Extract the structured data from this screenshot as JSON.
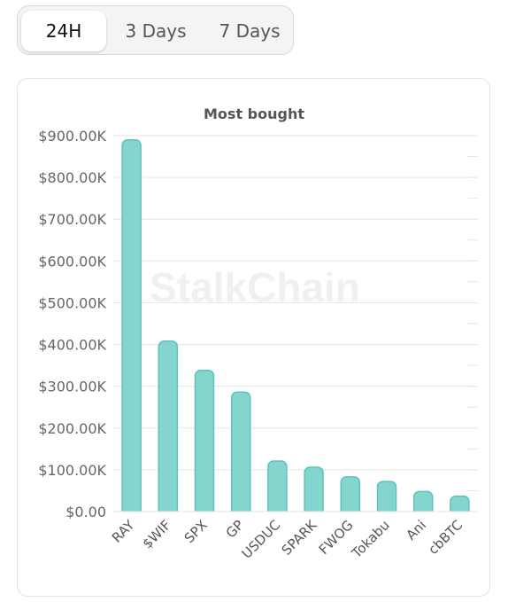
{
  "tabs": [
    {
      "label": "24H",
      "active": true
    },
    {
      "label": "3 Days",
      "active": false
    },
    {
      "label": "7 Days",
      "active": false
    }
  ],
  "watermark": "StalkChain",
  "colors": {
    "bar_fill": "#85d5cf",
    "bar_stroke": "#5cc4bb",
    "grid": "#e6e6e6"
  },
  "chart_data": {
    "type": "bar",
    "title": "Most bought",
    "xlabel": "",
    "ylabel": "",
    "categories": [
      "RAY",
      "$WIF",
      "SPX",
      "GP",
      "USDUC",
      "SPARK",
      "FWOG",
      "Tokabu",
      "Ani",
      "cbBTC"
    ],
    "values": [
      890000,
      408000,
      338000,
      286000,
      121000,
      106000,
      83000,
      72000,
      48000,
      37000
    ],
    "ylim": [
      0,
      900000
    ],
    "yticks": [
      0,
      100000,
      200000,
      300000,
      400000,
      500000,
      600000,
      700000,
      800000,
      900000
    ],
    "ytick_labels": [
      "$0.00",
      "$100.00K",
      "$200.00K",
      "$300.00K",
      "$400.00K",
      "$500.00K",
      "$600.00K",
      "$700.00K",
      "$800.00K",
      "$900.00K"
    ],
    "grid": true,
    "legend": "none"
  }
}
